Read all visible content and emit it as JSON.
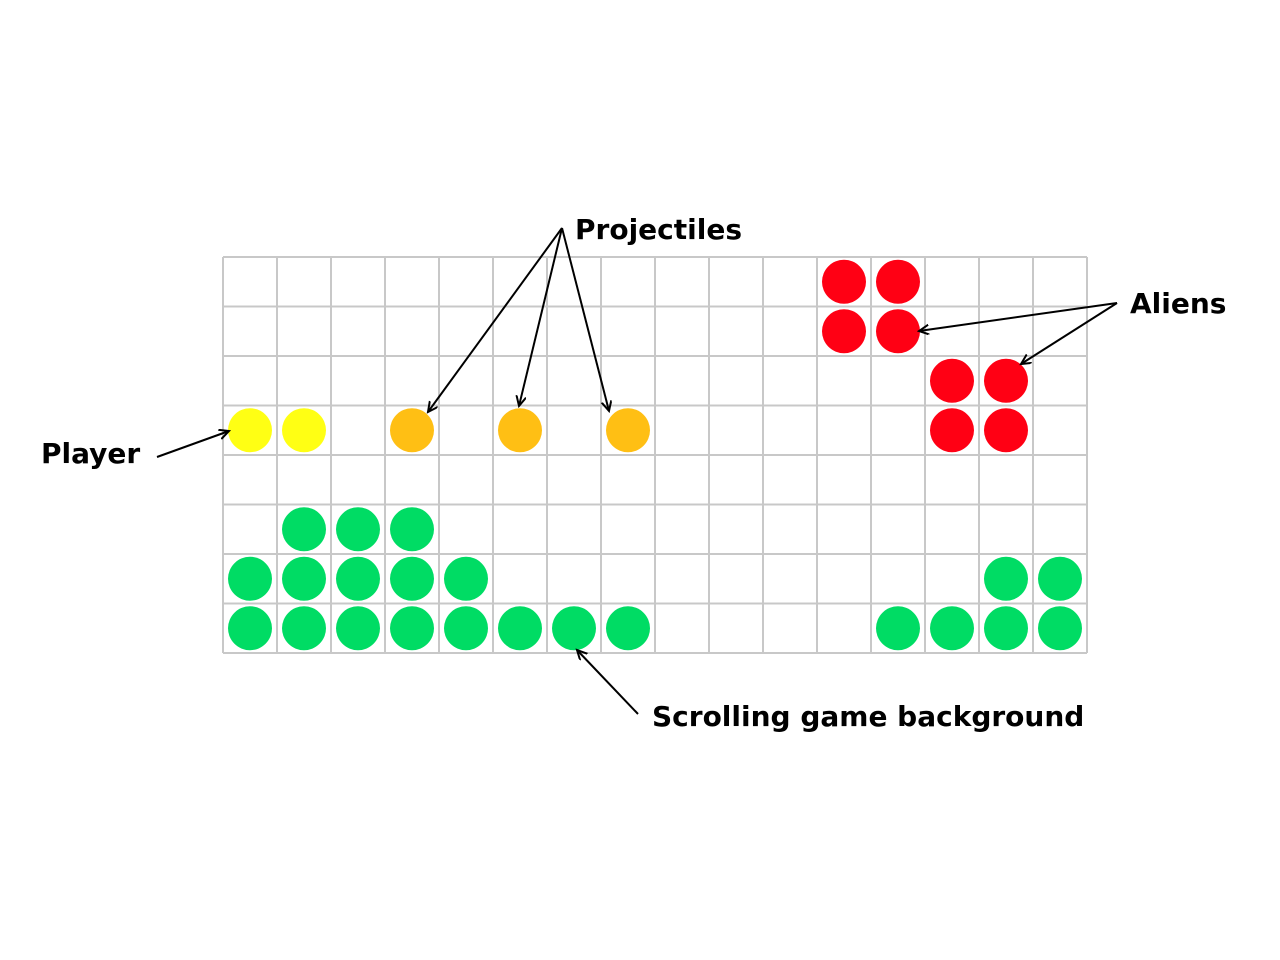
{
  "grid": {
    "cols": 16,
    "rows": 8,
    "line_color": "#c8c8c8"
  },
  "colors": {
    "player": "#ffff14",
    "projectile": "#ffbf14",
    "alien": "#ff0014",
    "background": "#00dc64"
  },
  "cells": {
    "player": [
      [
        0,
        3
      ],
      [
        1,
        3
      ]
    ],
    "projectiles": [
      [
        3,
        3
      ],
      [
        5,
        3
      ],
      [
        7,
        3
      ]
    ],
    "aliens": [
      [
        11,
        0
      ],
      [
        12,
        0
      ],
      [
        11,
        1
      ],
      [
        12,
        1
      ],
      [
        13,
        2
      ],
      [
        14,
        2
      ],
      [
        13,
        3
      ],
      [
        14,
        3
      ]
    ],
    "background": [
      [
        1,
        5
      ],
      [
        2,
        5
      ],
      [
        3,
        5
      ],
      [
        0,
        6
      ],
      [
        1,
        6
      ],
      [
        2,
        6
      ],
      [
        3,
        6
      ],
      [
        4,
        6
      ],
      [
        14,
        6
      ],
      [
        15,
        6
      ],
      [
        0,
        7
      ],
      [
        1,
        7
      ],
      [
        2,
        7
      ],
      [
        3,
        7
      ],
      [
        4,
        7
      ],
      [
        5,
        7
      ],
      [
        6,
        7
      ],
      [
        7,
        7
      ],
      [
        12,
        7
      ],
      [
        13,
        7
      ],
      [
        14,
        7
      ],
      [
        15,
        7
      ]
    ]
  },
  "labels": {
    "projectiles": "Projectiles",
    "aliens": "Aliens",
    "player": "Player",
    "background": "Scrolling game background"
  }
}
